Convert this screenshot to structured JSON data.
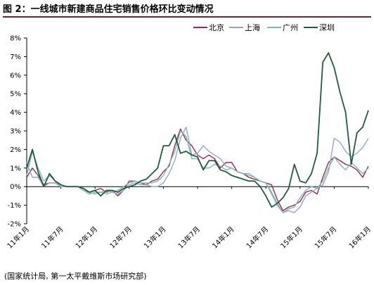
{
  "figure": {
    "title": "图 2：一线城市新建商品住宅销售价格环比变动情况",
    "source": "(国家统计局, 第一太平戴维斯市场研究部)"
  },
  "chart_data": {
    "type": "line",
    "title": "",
    "xlabel": "",
    "ylabel": "",
    "ylim": [
      -2,
      8
    ],
    "yticks": [
      "-2%",
      "-1%",
      "0%",
      "1%",
      "2%",
      "3%",
      "4%",
      "5%",
      "6%",
      "7%",
      "8%"
    ],
    "x_tick_labels": [
      "11年1月",
      "11年7月",
      "12年1月",
      "12年7月",
      "13年1月",
      "13年7月",
      "14年1月",
      "14年7月",
      "15年1月",
      "15年7月",
      "16年1月"
    ],
    "x": [
      "11年1月",
      "11年2月",
      "11年3月",
      "11年4月",
      "11年5月",
      "11年6月",
      "11年7月",
      "11年8月",
      "11年9月",
      "11年10月",
      "11年11月",
      "11年12月",
      "12年1月",
      "12年2月",
      "12年3月",
      "12年4月",
      "12年5月",
      "12年6月",
      "12年7月",
      "12年8月",
      "12年9月",
      "12年10月",
      "12年11月",
      "12年12月",
      "13年1月",
      "13年2月",
      "13年3月",
      "13年4月",
      "13年5月",
      "13年6月",
      "13年7月",
      "13年8月",
      "13年9月",
      "13年10月",
      "13年11月",
      "13年12月",
      "14年1月",
      "14年2月",
      "14年3月",
      "14年4月",
      "14年5月",
      "14年6月",
      "14年7月",
      "14年8月",
      "14年9月",
      "14年10月",
      "14年11月",
      "14年12月",
      "15年1月",
      "15年2月",
      "15年3月",
      "15年4月",
      "15年5月",
      "15年6月",
      "15年7月",
      "15年8月",
      "15年9月",
      "15年10月",
      "15年11月",
      "15年12月",
      "16年1月"
    ],
    "legend_position": "top-right",
    "series": [
      {
        "name": "北京",
        "color": "#a6244a",
        "values": [
          0.5,
          1.0,
          0.6,
          0.1,
          0.2,
          0.2,
          0.0,
          0.0,
          0.0,
          0.0,
          -0.2,
          -0.3,
          -0.2,
          -0.1,
          -0.3,
          -0.2,
          -0.5,
          -0.2,
          0.3,
          0.3,
          0.2,
          0.1,
          0.3,
          0.4,
          0.8,
          1.1,
          2.2,
          3.1,
          2.5,
          2.2,
          1.7,
          1.5,
          1.7,
          1.5,
          1.0,
          1.3,
          1.3,
          0.8,
          0.7,
          0.5,
          0.4,
          0.3,
          0.2,
          0.1,
          -0.7,
          -1.3,
          -1.1,
          -1.0,
          -0.8,
          -0.3,
          -0.2,
          -0.4,
          0.5,
          1.3,
          1.6,
          1.4,
          1.2,
          1.1,
          0.9,
          0.5,
          1.1
        ]
      },
      {
        "name": "上海",
        "color": "#8ea7d6",
        "values": [
          1.3,
          0.5,
          0.5,
          0.0,
          0.2,
          0.2,
          0.0,
          0.0,
          0.0,
          0.0,
          -0.2,
          -0.3,
          -0.4,
          -0.3,
          -0.2,
          -0.3,
          -0.4,
          -0.2,
          0.1,
          0.2,
          0.1,
          0.1,
          0.0,
          0.0,
          0.2,
          0.7,
          1.4,
          2.6,
          3.2,
          1.7,
          1.8,
          2.2,
          1.9,
          1.7,
          1.5,
          1.1,
          1.0,
          0.8,
          0.7,
          0.7,
          0.5,
          0.3,
          0.2,
          -0.4,
          -1.0,
          -1.4,
          -1.3,
          -1.4,
          -1.1,
          -0.5,
          -0.3,
          -0.1,
          0.1,
          0.8,
          2.6,
          2.4,
          1.9,
          1.6,
          1.8,
          2.1,
          2.6
        ]
      },
      {
        "name": "广州",
        "color": "#79bba7",
        "values": [
          0.6,
          1.9,
          1.0,
          0.3,
          0.6,
          0.3,
          0.0,
          0.0,
          0.0,
          0.0,
          -0.2,
          -0.4,
          -0.3,
          -0.3,
          -0.4,
          -0.3,
          -0.2,
          0.0,
          0.2,
          0.3,
          0.2,
          0.2,
          0.2,
          0.3,
          0.6,
          1.2,
          1.9,
          3.0,
          2.7,
          1.5,
          1.5,
          1.0,
          1.0,
          1.2,
          1.1,
          0.9,
          1.0,
          0.8,
          0.7,
          0.6,
          0.5,
          0.3,
          0.2,
          -0.3,
          -0.9,
          -1.4,
          -1.2,
          -1.1,
          -0.6,
          -0.2,
          0.0,
          -0.1,
          0.3,
          1.0,
          1.6,
          1.2,
          0.9,
          1.3,
          1.0,
          0.7,
          1.0
        ]
      },
      {
        "name": "深圳",
        "color": "#1f5c3c",
        "values": [
          1.0,
          2.0,
          0.8,
          0.0,
          0.7,
          0.3,
          0.1,
          0.0,
          0.0,
          0.0,
          -0.1,
          -0.3,
          -0.2,
          -0.5,
          -0.2,
          -0.2,
          -0.3,
          -0.1,
          0.0,
          0.1,
          0.3,
          0.4,
          0.7,
          1.0,
          2.2,
          2.2,
          2.8,
          1.8,
          1.9,
          1.7,
          1.6,
          0.9,
          1.4,
          1.4,
          0.9,
          0.8,
          0.6,
          0.5,
          0.4,
          0.3,
          0.3,
          0.0,
          -0.5,
          -1.1,
          -0.9,
          -0.6,
          -0.1,
          1.2,
          0.3,
          0.2,
          0.7,
          1.8,
          6.7,
          7.2,
          6.4,
          5.1,
          4.0,
          1.2,
          2.9,
          3.2,
          4.1
        ]
      }
    ]
  }
}
